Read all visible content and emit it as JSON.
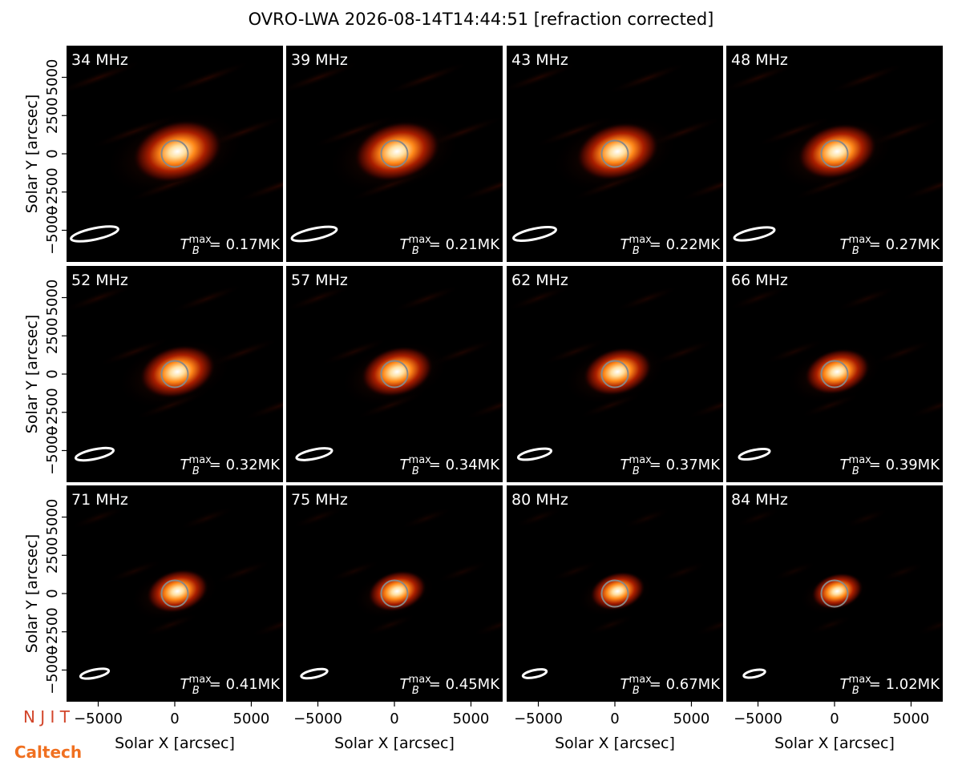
{
  "title": "OVRO-LWA 2026-08-14T14:44:51 [refraction corrected]",
  "axes": {
    "xlabel": "Solar X [arcsec]",
    "ylabel": "Solar Y [arcsec]",
    "xlim": [
      -7070,
      7070
    ],
    "ylim": [
      -7070,
      7070
    ],
    "xticks": [
      {
        "value": -5000,
        "label": "−5000"
      },
      0,
      5000
    ],
    "yticks": [
      {
        "value": -5000,
        "label": "−5000"
      },
      {
        "value": -2500,
        "label": "−2500"
      },
      0,
      2500,
      5000
    ]
  },
  "tb_symbol": {
    "base": "T",
    "sub": "B",
    "sup": "max"
  },
  "chart_data": [
    {
      "type": "image",
      "label": "34 MHz",
      "annotation": "= 0.17MK"
    },
    {
      "type": "image",
      "label": "39 MHz",
      "annotation": "= 0.21MK"
    },
    {
      "type": "image",
      "label": "43 MHz",
      "annotation": "= 0.22MK"
    },
    {
      "type": "image",
      "label": "48 MHz",
      "annotation": "= 0.27MK"
    },
    {
      "type": "image",
      "label": "52 MHz",
      "annotation": "= 0.32MK"
    },
    {
      "type": "image",
      "label": "57 MHz",
      "annotation": "= 0.34MK"
    },
    {
      "type": "image",
      "label": "62 MHz",
      "annotation": "= 0.37MK"
    },
    {
      "type": "image",
      "label": "66 MHz",
      "annotation": "= 0.39MK"
    },
    {
      "type": "image",
      "label": "71 MHz",
      "annotation": "= 0.41MK"
    },
    {
      "type": "image",
      "label": "75 MHz",
      "annotation": "= 0.45MK"
    },
    {
      "type": "image",
      "label": "80 MHz",
      "annotation": "= 0.67MK"
    },
    {
      "type": "image",
      "label": "84 MHz",
      "annotation": "= 1.02MK"
    }
  ],
  "logos": {
    "njit": "N J I T",
    "caltech": "Caltech"
  }
}
